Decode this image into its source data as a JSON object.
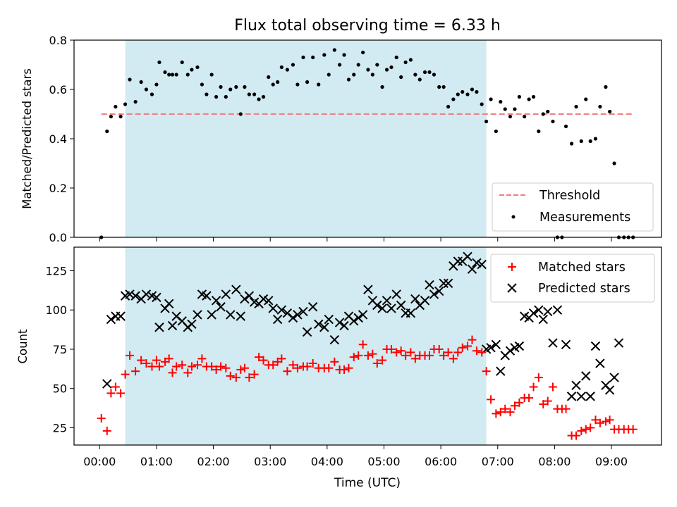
{
  "chart_data": [
    {
      "type": "scatter",
      "title": "Flux total observing time = 6.33 h",
      "xlabel": "",
      "ylabel": "Matched/Predicted stars",
      "ylim": [
        0,
        0.8
      ],
      "yticks": [
        "0.0",
        "0.2",
        "0.4",
        "0.6",
        "0.8"
      ],
      "threshold": 0.5,
      "shaded_span_hours": [
        0.45,
        6.8
      ],
      "legend_position": "lower-right",
      "legend": [
        "Threshold",
        "Measurements"
      ],
      "series": [
        {
          "name": "Measurements",
          "x": [
            0.03,
            0.13,
            0.2,
            0.28,
            0.37,
            0.45,
            0.53,
            0.63,
            0.73,
            0.82,
            0.92,
            1.0,
            1.05,
            1.15,
            1.22,
            1.28,
            1.35,
            1.45,
            1.55,
            1.62,
            1.72,
            1.8,
            1.88,
            1.97,
            2.05,
            2.13,
            2.22,
            2.3,
            2.4,
            2.48,
            2.55,
            2.63,
            2.72,
            2.8,
            2.88,
            2.97,
            3.05,
            3.13,
            3.2,
            3.3,
            3.4,
            3.48,
            3.58,
            3.65,
            3.75,
            3.85,
            3.95,
            4.03,
            4.13,
            4.22,
            4.3,
            4.38,
            4.47,
            4.55,
            4.63,
            4.72,
            4.8,
            4.88,
            4.97,
            5.05,
            5.13,
            5.22,
            5.3,
            5.38,
            5.47,
            5.55,
            5.63,
            5.72,
            5.8,
            5.88,
            5.97,
            6.05,
            6.13,
            6.22,
            6.3,
            6.38,
            6.47,
            6.55,
            6.63,
            6.72,
            6.8,
            6.88,
            6.97,
            7.05,
            7.13,
            7.22,
            7.3,
            7.38,
            7.47,
            7.55,
            7.63,
            7.72,
            7.8,
            7.88,
            7.97,
            8.05,
            8.13,
            8.2,
            8.3,
            8.38,
            8.47,
            8.55,
            8.63,
            8.72,
            8.8,
            8.9,
            8.97,
            9.05,
            9.13,
            9.22,
            9.3,
            9.38
          ],
          "y": [
            0.0,
            0.43,
            0.49,
            0.53,
            0.49,
            0.54,
            0.64,
            0.55,
            0.63,
            0.6,
            0.58,
            0.62,
            0.71,
            0.67,
            0.66,
            0.66,
            0.66,
            0.71,
            0.66,
            0.68,
            0.69,
            0.62,
            0.58,
            0.66,
            0.57,
            0.61,
            0.57,
            0.6,
            0.61,
            0.5,
            0.61,
            0.58,
            0.58,
            0.56,
            0.57,
            0.65,
            0.62,
            0.63,
            0.69,
            0.68,
            0.7,
            0.62,
            0.73,
            0.63,
            0.73,
            0.62,
            0.74,
            0.66,
            0.76,
            0.7,
            0.74,
            0.64,
            0.66,
            0.7,
            0.75,
            0.68,
            0.66,
            0.7,
            0.61,
            0.68,
            0.69,
            0.73,
            0.65,
            0.71,
            0.72,
            0.66,
            0.64,
            0.67,
            0.67,
            0.66,
            0.61,
            0.61,
            0.53,
            0.56,
            0.58,
            0.59,
            0.58,
            0.6,
            0.59,
            0.54,
            0.47,
            0.56,
            0.43,
            0.55,
            0.52,
            0.49,
            0.52,
            0.57,
            0.49,
            0.56,
            0.57,
            0.43,
            0.5,
            0.51,
            0.47,
            0.0,
            0.0,
            0.45,
            0.38,
            0.53,
            0.39,
            0.56,
            0.39,
            0.4,
            0.53,
            0.61,
            0.51,
            0.3,
            0.0,
            0.0,
            0.0,
            0.0
          ]
        }
      ]
    },
    {
      "type": "scatter",
      "xlabel": "Time (UTC)",
      "ylabel": "Count",
      "ylim": [
        14,
        140
      ],
      "yticks": [
        "25",
        "50",
        "75",
        "100",
        "125"
      ],
      "xticks": [
        "00:00",
        "01:00",
        "02:00",
        "03:00",
        "04:00",
        "05:00",
        "06:00",
        "07:00",
        "08:00",
        "09:00"
      ],
      "xlim_hours": [
        -0.45,
        9.88
      ],
      "legend_position": "top-right",
      "legend": [
        "Matched stars",
        "Predicted stars"
      ],
      "series": [
        {
          "name": "Matched stars",
          "color": "#ff0000",
          "x": [
            0.03,
            0.13,
            0.2,
            0.28,
            0.37,
            0.45,
            0.53,
            0.63,
            0.73,
            0.82,
            0.92,
            1.0,
            1.05,
            1.15,
            1.22,
            1.28,
            1.35,
            1.45,
            1.55,
            1.62,
            1.72,
            1.8,
            1.88,
            1.97,
            2.05,
            2.13,
            2.22,
            2.3,
            2.4,
            2.48,
            2.55,
            2.63,
            2.72,
            2.8,
            2.88,
            2.97,
            3.05,
            3.13,
            3.2,
            3.3,
            3.4,
            3.48,
            3.58,
            3.65,
            3.75,
            3.85,
            3.95,
            4.03,
            4.13,
            4.22,
            4.3,
            4.38,
            4.47,
            4.55,
            4.63,
            4.72,
            4.8,
            4.88,
            4.97,
            5.05,
            5.13,
            5.22,
            5.3,
            5.38,
            5.47,
            5.55,
            5.63,
            5.72,
            5.8,
            5.88,
            5.97,
            6.05,
            6.13,
            6.22,
            6.3,
            6.38,
            6.47,
            6.55,
            6.63,
            6.72,
            6.8,
            6.88,
            6.97,
            7.05,
            7.13,
            7.22,
            7.3,
            7.38,
            7.47,
            7.55,
            7.63,
            7.72,
            7.8,
            7.88,
            7.97,
            8.05,
            8.13,
            8.2,
            8.3,
            8.38,
            8.47,
            8.55,
            8.63,
            8.72,
            8.8,
            8.9,
            8.97,
            9.05,
            9.13,
            9.22,
            9.3,
            9.38
          ],
          "values": [
            31,
            23,
            47,
            51,
            47,
            59,
            71,
            61,
            68,
            66,
            64,
            68,
            64,
            67,
            69,
            60,
            64,
            65,
            60,
            64,
            65,
            69,
            64,
            64,
            62,
            64,
            63,
            58,
            57,
            62,
            63,
            57,
            59,
            70,
            68,
            65,
            65,
            67,
            69,
            61,
            65,
            63,
            64,
            64,
            66,
            63,
            63,
            63,
            67,
            62,
            62,
            63,
            70,
            71,
            78,
            71,
            72,
            66,
            68,
            75,
            75,
            73,
            74,
            71,
            73,
            69,
            71,
            71,
            71,
            75,
            75,
            71,
            73,
            69,
            73,
            76,
            77,
            81,
            74,
            73,
            61,
            43,
            34,
            35,
            37,
            35,
            39,
            41,
            44,
            44,
            51,
            57,
            40,
            42,
            51,
            37,
            37,
            37,
            20,
            20,
            23,
            24,
            25,
            30,
            28,
            29,
            30,
            24,
            24,
            24,
            24,
            24
          ]
        },
        {
          "name": "Predicted stars",
          "color": "#000000",
          "x": [
            0.13,
            0.2,
            0.28,
            0.37,
            0.45,
            0.53,
            0.63,
            0.73,
            0.82,
            0.92,
            1.0,
            1.05,
            1.15,
            1.22,
            1.28,
            1.35,
            1.45,
            1.55,
            1.62,
            1.72,
            1.8,
            1.88,
            1.97,
            2.05,
            2.13,
            2.22,
            2.3,
            2.4,
            2.48,
            2.55,
            2.63,
            2.72,
            2.8,
            2.88,
            2.97,
            3.05,
            3.13,
            3.2,
            3.3,
            3.4,
            3.48,
            3.58,
            3.65,
            3.75,
            3.85,
            3.95,
            4.03,
            4.13,
            4.22,
            4.3,
            4.38,
            4.47,
            4.55,
            4.63,
            4.72,
            4.8,
            4.88,
            4.97,
            5.05,
            5.13,
            5.22,
            5.3,
            5.38,
            5.47,
            5.55,
            5.63,
            5.72,
            5.8,
            5.88,
            5.97,
            6.05,
            6.13,
            6.22,
            6.3,
            6.38,
            6.47,
            6.55,
            6.63,
            6.72,
            6.8,
            6.88,
            6.97,
            7.05,
            7.13,
            7.22,
            7.3,
            7.38,
            7.47,
            7.55,
            7.63,
            7.72,
            7.8,
            7.88,
            7.97,
            8.05,
            8.2,
            8.3,
            8.38,
            8.47,
            8.55,
            8.63,
            8.72,
            8.8,
            8.9,
            8.97,
            9.05,
            9.13
          ],
          "values": [
            53,
            94,
            96,
            96,
            109,
            110,
            109,
            107,
            110,
            109,
            108,
            89,
            101,
            104,
            90,
            96,
            93,
            89,
            91,
            97,
            110,
            109,
            97,
            106,
            102,
            110,
            97,
            113,
            96,
            107,
            109,
            105,
            104,
            107,
            106,
            101,
            94,
            100,
            98,
            95,
            97,
            99,
            86,
            102,
            91,
            89,
            94,
            81,
            92,
            90,
            96,
            93,
            95,
            97,
            113,
            106,
            103,
            101,
            106,
            101,
            110,
            103,
            98,
            98,
            107,
            103,
            106,
            116,
            110,
            112,
            117,
            117,
            128,
            131,
            131,
            134,
            126,
            130,
            129,
            75,
            76,
            78,
            61,
            71,
            74,
            76,
            77,
            96,
            95,
            98,
            100,
            94,
            99,
            79,
            100,
            78,
            45,
            52,
            45,
            58,
            45,
            77,
            66,
            52,
            49,
            57,
            79
          ]
        }
      ]
    }
  ]
}
